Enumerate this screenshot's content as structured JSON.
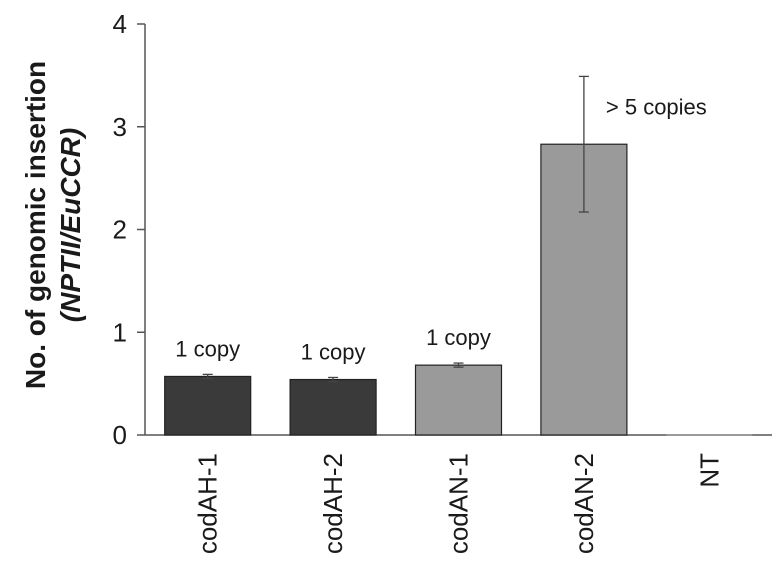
{
  "chart_data": {
    "type": "bar",
    "categories": [
      "codAH-1",
      "codAH-2",
      "codAN-1",
      "codAN-2",
      "NT"
    ],
    "values": [
      0.57,
      0.54,
      0.68,
      2.83,
      0.0
    ],
    "error": [
      0.02,
      0.02,
      0.02,
      0.66,
      0.0
    ],
    "bar_colors": [
      "#3a3a3a",
      "#3a3a3a",
      "#9a9a9a",
      "#9a9a9a",
      "#9a9a9a"
    ],
    "annotations": [
      "1 copy",
      "1 copy",
      "1 copy",
      "> 5 copies",
      ""
    ],
    "ylabel_line1": "No. of genomic insertion",
    "ylabel_line2": "(NPTII/EuCCR)",
    "ylim": [
      0,
      4
    ],
    "yticks": [
      "0",
      "1",
      "2",
      "3",
      "4"
    ],
    "grid": false
  }
}
